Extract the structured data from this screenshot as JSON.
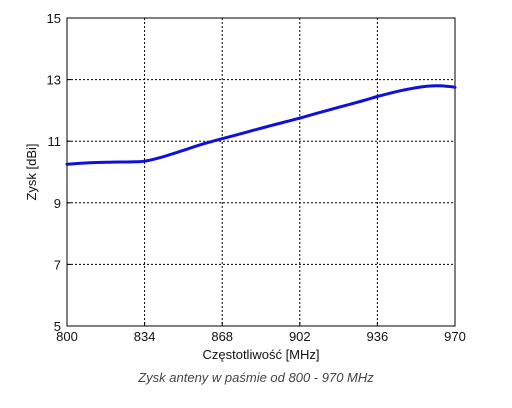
{
  "chart_data": {
    "type": "line",
    "xlabel": "Częstotliwość [MHz]",
    "ylabel": "Zysk [dBi]",
    "xlim": [
      800,
      970
    ],
    "ylim": [
      5,
      15
    ],
    "xticks": [
      800,
      834,
      868,
      902,
      936,
      970
    ],
    "yticks": [
      5,
      7,
      9,
      11,
      13,
      15
    ],
    "grid": true,
    "line_color": "#1010dd",
    "series": [
      {
        "x": [
          800,
          810,
          820,
          830,
          834,
          840,
          850,
          860,
          868,
          880,
          890,
          902,
          910,
          920,
          930,
          936,
          945,
          955,
          962,
          967,
          970
        ],
        "values": [
          10.25,
          10.3,
          10.32,
          10.33,
          10.35,
          10.45,
          10.68,
          10.92,
          11.08,
          11.32,
          11.52,
          11.75,
          11.92,
          12.12,
          12.32,
          12.45,
          12.62,
          12.76,
          12.8,
          12.78,
          12.75
        ]
      }
    ]
  },
  "caption": "Zysk anteny w paśmie od 800 - 970 MHz"
}
